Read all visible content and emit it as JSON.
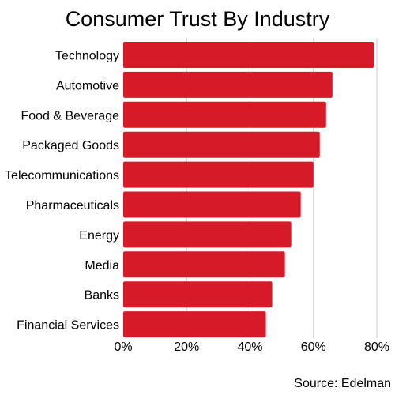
{
  "chart_data": {
    "type": "bar",
    "orientation": "horizontal",
    "title": "Consumer Trust By Industry",
    "categories": [
      "Technology",
      "Automotive",
      "Food & Beverage",
      "Packaged Goods",
      "Telecommunications",
      "Pharmaceuticals",
      "Energy",
      "Media",
      "Banks",
      "Financial Services"
    ],
    "values": [
      79,
      66,
      64,
      62,
      60,
      56,
      53,
      51,
      47,
      45
    ],
    "value_unit": "%",
    "xlim": [
      0,
      80
    ],
    "x_ticks": [
      "0%",
      "20%",
      "40%",
      "60%",
      "80%"
    ],
    "x_tick_values": [
      0,
      20,
      40,
      60,
      80
    ],
    "xlabel": "",
    "ylabel": "",
    "grid": "vertical",
    "legend": "none",
    "bar_color": "#d71a28",
    "grid_color": "#cccccc"
  },
  "source": "Source: Edelman"
}
